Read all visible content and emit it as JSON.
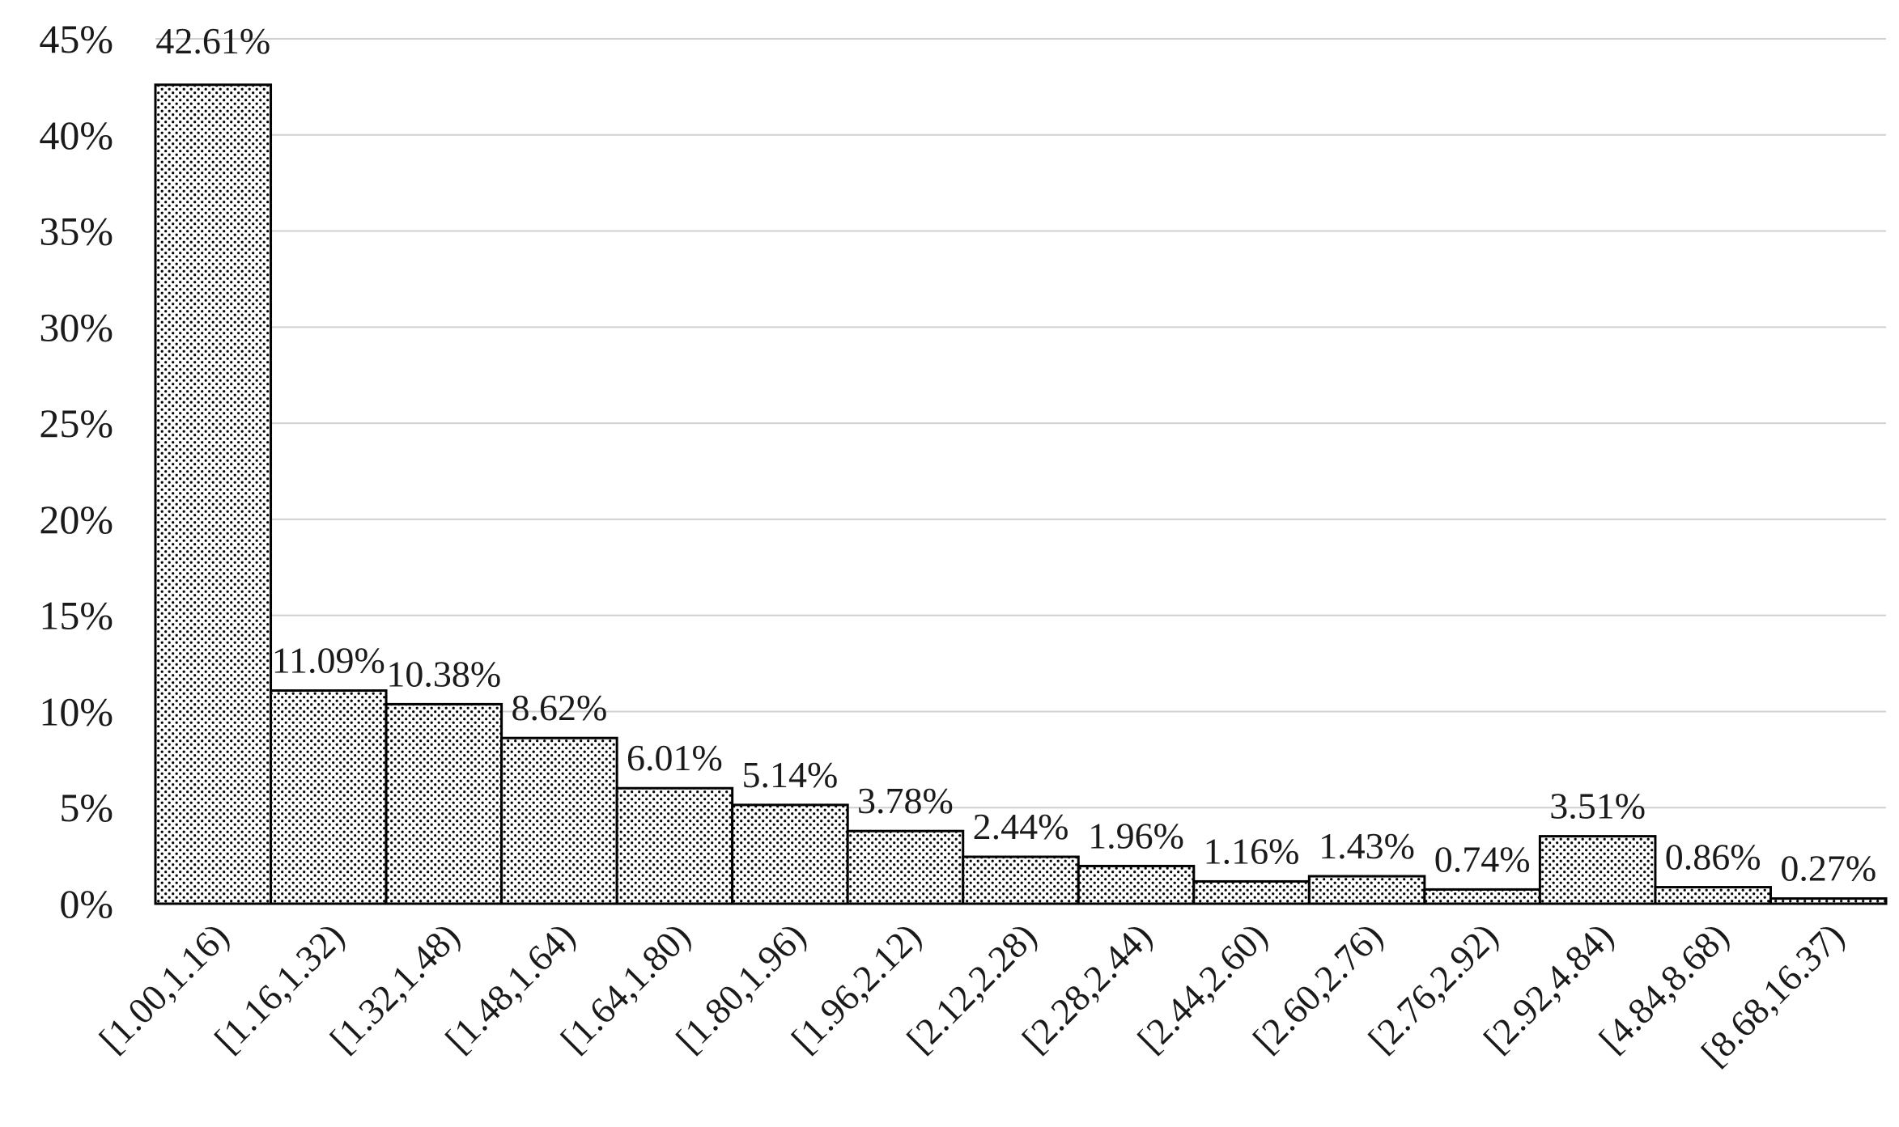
{
  "chart_data": {
    "type": "bar",
    "title": "",
    "xlabel": "",
    "ylabel": "",
    "ylim": [
      0,
      45
    ],
    "y_ticks": [
      0,
      5,
      10,
      15,
      20,
      25,
      30,
      35,
      40,
      45
    ],
    "y_tick_labels": [
      "0%",
      "5%",
      "10%",
      "15%",
      "20%",
      "25%",
      "30%",
      "35%",
      "40%",
      "45%"
    ],
    "grid": "horizontal",
    "bar_fill": "dotted",
    "colors": {
      "bar_stroke": "#000000",
      "bar_dots": "#000000",
      "gridline": "#d0d0d0",
      "axis": "#000000",
      "text": "#1a1a1a"
    },
    "categories": [
      "[1.00,1.16)",
      "[1.16,1.32)",
      "[1.32,1.48)",
      "[1.48,1.64)",
      "[1.64,1.80)",
      "[1.80,1.96)",
      "[1.96,2.12)",
      "[2.12,2.28)",
      "[2.28,2.44)",
      "[2.44,2.60)",
      "[2.60,2.76)",
      "[2.76,2.92)",
      "[2.92,4.84)",
      "[4.84,8.68)",
      "[8.68,16.37)"
    ],
    "values": [
      42.61,
      11.09,
      10.38,
      8.62,
      6.01,
      5.14,
      3.78,
      2.44,
      1.96,
      1.16,
      1.43,
      0.74,
      3.51,
      0.86,
      0.27
    ],
    "data_labels": [
      "42.61%",
      "11.09%",
      "10.38%",
      "8.62%",
      "6.01%",
      "5.14%",
      "3.78%",
      "2.44%",
      "1.96%",
      "1.16%",
      "1.43%",
      "0.74%",
      "3.51%",
      "0.86%",
      "0.27%"
    ]
  }
}
